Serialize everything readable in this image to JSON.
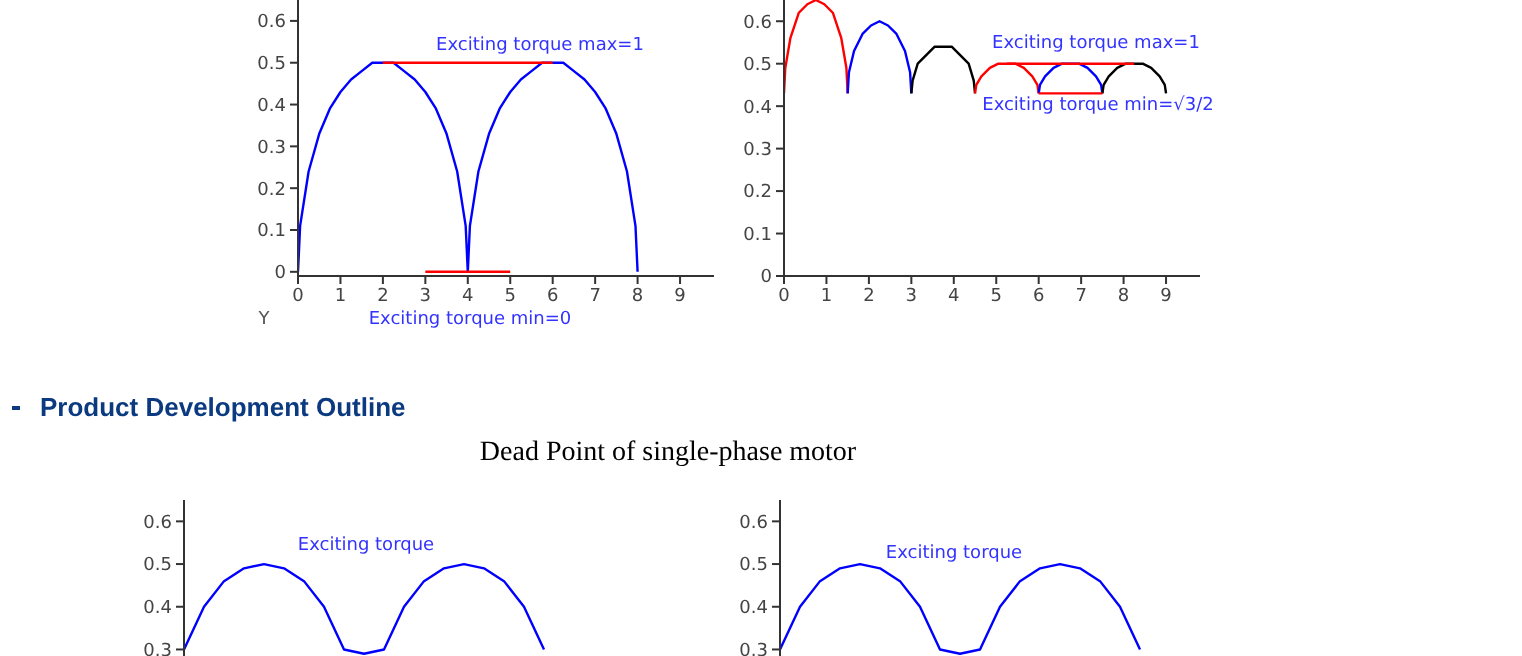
{
  "chart_data": [
    {
      "type": "line",
      "xlim": [
        0,
        9.8
      ],
      "xticks": [
        0,
        1,
        2,
        3,
        4,
        5,
        6,
        7,
        8,
        9
      ],
      "ylim": [
        -0.01,
        0.65
      ],
      "yticks": [
        0,
        0.1,
        0.2,
        0.3,
        0.4,
        0.5,
        0.6
      ],
      "grid": false,
      "legend": false,
      "annotations": [
        "Exciting torque max=1",
        "Exciting torque min=0",
        "Y"
      ],
      "series": [
        {
          "color": "#0000ff",
          "x": [
            0,
            0.05,
            0.25,
            0.5,
            0.75,
            1,
            1.25,
            1.5,
            1.75,
            2,
            2.25,
            2.5,
            2.75,
            3,
            3.25,
            3.5,
            3.75,
            3.95,
            4,
            4.05,
            4.25,
            4.5,
            4.75,
            5,
            5.25,
            5.5,
            5.75,
            6,
            6.25,
            6.5,
            6.75,
            7,
            7.25,
            7.5,
            7.75,
            7.95,
            8
          ],
          "values": [
            0,
            0.11,
            0.24,
            0.33,
            0.39,
            0.43,
            0.46,
            0.48,
            0.5,
            0.5,
            0.5,
            0.48,
            0.46,
            0.43,
            0.39,
            0.33,
            0.24,
            0.11,
            0,
            0.11,
            0.24,
            0.33,
            0.39,
            0.43,
            0.46,
            0.48,
            0.5,
            0.5,
            0.5,
            0.48,
            0.46,
            0.43,
            0.39,
            0.33,
            0.24,
            0.11,
            0
          ]
        },
        {
          "color": "#ff0000",
          "x": [
            2,
            6
          ],
          "values": [
            0.5,
            0.5
          ]
        },
        {
          "color": "#ff0000",
          "x": [
            3,
            5
          ],
          "values": [
            0,
            0
          ]
        }
      ]
    },
    {
      "type": "line",
      "xlim": [
        0,
        9.8
      ],
      "xticks": [
        0,
        1,
        2,
        3,
        4,
        5,
        6,
        7,
        8,
        9
      ],
      "ylim": [
        0,
        0.65
      ],
      "yticks": [
        0,
        0.1,
        0.2,
        0.3,
        0.4,
        0.5,
        0.6
      ],
      "grid": false,
      "legend": false,
      "annotations": [
        "Exciting torque max=1",
        "Exciting torque min=√3/2"
      ],
      "series": [
        {
          "color": "#ff0000",
          "x": [
            0,
            0.03,
            0.15,
            0.35,
            0.55,
            0.75,
            0.95,
            1.15,
            1.35,
            1.47,
            1.5
          ],
          "values": [
            0.43,
            0.49,
            0.56,
            0.62,
            0.64,
            0.65,
            0.64,
            0.62,
            0.56,
            0.49,
            0.43
          ]
        },
        {
          "color": "#0000ff",
          "x": [
            1.5,
            1.53,
            1.65,
            1.85,
            2.05,
            2.25,
            2.45,
            2.65,
            2.85,
            2.97,
            3
          ],
          "values": [
            0.43,
            0.48,
            0.53,
            0.57,
            0.59,
            0.6,
            0.59,
            0.57,
            0.53,
            0.48,
            0.43
          ]
        },
        {
          "color": "#000000",
          "x": [
            3,
            3.03,
            3.15,
            3.35,
            3.55,
            3.75,
            3.95,
            4.15,
            4.35,
            4.47,
            4.5
          ],
          "values": [
            0.43,
            0.46,
            0.5,
            0.52,
            0.54,
            0.54,
            0.54,
            0.52,
            0.5,
            0.46,
            0.43
          ]
        },
        {
          "color": "#ff0000",
          "x": [
            4.5,
            4.53,
            4.65,
            4.85,
            5.05,
            5.25,
            5.45,
            5.65,
            5.85,
            5.97,
            6
          ],
          "values": [
            0.43,
            0.45,
            0.47,
            0.49,
            0.5,
            0.5,
            0.5,
            0.49,
            0.47,
            0.45,
            0.43
          ]
        },
        {
          "color": "#0000ff",
          "x": [
            6,
            6.03,
            6.15,
            6.35,
            6.55,
            6.75,
            6.95,
            7.15,
            7.35,
            7.47,
            7.5
          ],
          "values": [
            0.43,
            0.45,
            0.47,
            0.49,
            0.5,
            0.5,
            0.5,
            0.49,
            0.47,
            0.45,
            0.43
          ]
        },
        {
          "color": "#000000",
          "x": [
            7.5,
            7.53,
            7.65,
            7.85,
            8.05,
            8.25,
            8.45,
            8.65,
            8.85,
            8.97,
            9
          ],
          "values": [
            0.43,
            0.45,
            0.47,
            0.49,
            0.5,
            0.5,
            0.5,
            0.49,
            0.47,
            0.45,
            0.43
          ]
        },
        {
          "color": "#ff0000",
          "x": [
            5.25,
            8.25
          ],
          "values": [
            0.5,
            0.5
          ]
        },
        {
          "color": "#ff0000",
          "x": [
            6,
            7.5
          ],
          "values": [
            0.43,
            0.43
          ]
        }
      ]
    },
    {
      "type": "other",
      "title": "Product Development Outline",
      "subtitle": "Dead Point of single-phase motor"
    },
    {
      "type": "line",
      "categories": [
        null,
        null,
        null,
        null,
        null,
        null,
        null,
        null,
        null,
        null,
        null,
        null,
        null,
        null,
        null,
        null,
        null,
        null,
        null
      ],
      "ylim": [
        0.28,
        0.65
      ],
      "yticks": [
        0.3,
        0.4,
        0.5,
        0.6
      ],
      "tick_labels": "y",
      "grid": false,
      "legend": false,
      "annotations": [
        "Exciting torque"
      ],
      "series": [
        {
          "color": "#0000ff",
          "values": [
            0.3,
            0.4,
            0.46,
            0.49,
            0.5,
            0.49,
            0.46,
            0.4,
            0.3,
            0.29,
            0.3,
            0.4,
            0.46,
            0.49,
            0.5,
            0.49,
            0.46,
            0.4,
            0.3
          ]
        }
      ]
    },
    {
      "type": "line",
      "categories": [
        null,
        null,
        null,
        null,
        null,
        null,
        null,
        null,
        null,
        null,
        null,
        null,
        null,
        null,
        null,
        null,
        null,
        null,
        null
      ],
      "ylim": [
        0.28,
        0.65
      ],
      "yticks": [
        0.3,
        0.4,
        0.5,
        0.6
      ],
      "tick_labels": "y",
      "grid": false,
      "legend": false,
      "annotations": [
        "Exciting torque"
      ],
      "series": [
        {
          "color": "#0000ff",
          "values": [
            0.3,
            0.4,
            0.46,
            0.49,
            0.5,
            0.49,
            0.46,
            0.4,
            0.3,
            0.29,
            0.3,
            0.4,
            0.46,
            0.49,
            0.5,
            0.49,
            0.46,
            0.4,
            0.3
          ]
        }
      ]
    }
  ]
}
